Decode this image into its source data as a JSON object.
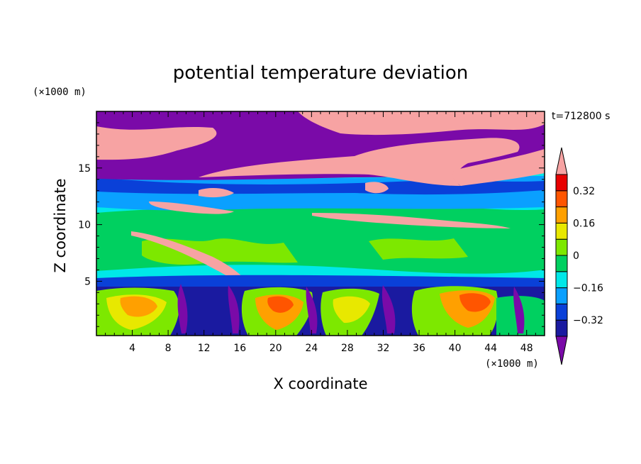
{
  "chart_data": {
    "type": "heatmap",
    "title": "potential temperature deviation",
    "xlabel": "X coordinate",
    "ylabel": "Z coordinate",
    "x_unit": "(×1000 m)",
    "y_unit": "(×1000 m)",
    "time_label": "t=712800 s",
    "xlim": [
      0,
      50
    ],
    "ylim": [
      0.2,
      20
    ],
    "x_ticks": [
      4,
      8,
      12,
      16,
      20,
      24,
      28,
      32,
      36,
      40,
      44,
      48
    ],
    "x_tick_labels": [
      "4",
      "8",
      "12",
      "16",
      "20",
      "24",
      "28",
      "32",
      "36",
      "40",
      "44",
      "48"
    ],
    "y_ticks": [
      5,
      10,
      15
    ],
    "y_tick_labels": [
      "5",
      "10",
      "15"
    ],
    "colorbar": {
      "levels": [
        -0.4,
        -0.32,
        -0.24,
        -0.16,
        -0.08,
        0,
        0.08,
        0.16,
        0.24,
        0.32,
        0.4
      ],
      "colors": [
        "#1a1aa0",
        "#0a40d8",
        "#0aa0ff",
        "#00e8e8",
        "#00d060",
        "#7de800",
        "#e8e800",
        "#ffa000",
        "#ff5500",
        "#e80000"
      ],
      "under_color": "#7a0aa8",
      "over_color": "#f7a3a3",
      "tick_values": [
        0.32,
        0.16,
        0,
        -0.16,
        -0.32
      ],
      "tick_labels": [
        "0.32",
        "0.16",
        "0",
        "−0.16",
        "−0.32"
      ]
    }
  }
}
